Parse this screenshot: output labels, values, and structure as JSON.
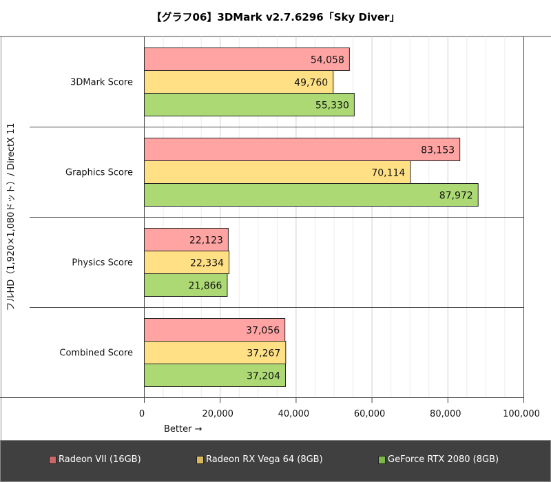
{
  "chart_data": {
    "type": "bar",
    "orientation": "horizontal",
    "title": "【グラフ06】3DMark v2.7.6296「Sky Diver」",
    "ylabel": "フルHD（1,920×1,080ドット）/ DirectX 11",
    "xlabel": "Better →",
    "categories": [
      "3DMark Score",
      "Graphics Score",
      "Physics Score",
      "Combined Score"
    ],
    "series": [
      {
        "name": "Radeon VII (16GB)",
        "values": [
          54058,
          83153,
          22123,
          37056
        ],
        "color": "#ffa3a3",
        "legend_color": "#c86868"
      },
      {
        "name": "Radeon RX Vega 64 (8GB)",
        "values": [
          49760,
          70114,
          22334,
          37267
        ],
        "color": "#ffe085",
        "legend_color": "#d8b858"
      },
      {
        "name": "GeForce RTX 2080 (8GB)",
        "values": [
          55330,
          87972,
          21866,
          37204
        ],
        "color": "#acd974",
        "legend_color": "#7cb848"
      }
    ],
    "xlim": [
      0,
      100000
    ],
    "xticks": [
      "0",
      "20,000",
      "40,000",
      "60,000",
      "80,000",
      "100,000"
    ],
    "grid": true,
    "legend_position": "bottom"
  }
}
